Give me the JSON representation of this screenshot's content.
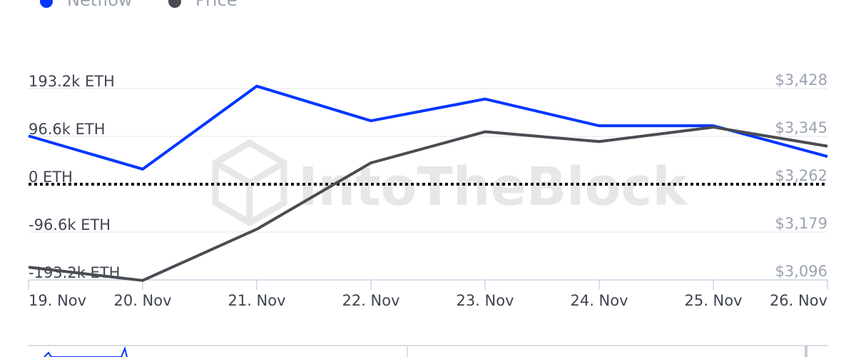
{
  "watermark": "IntoTheBlock",
  "legend": [
    {
      "name": "Netflow",
      "color": "#0336ff"
    },
    {
      "name": "Price",
      "color": "#4a4c52"
    }
  ],
  "chart_data": {
    "type": "line",
    "categories": [
      "19. Nov",
      "20. Nov",
      "21. Nov",
      "22. Nov",
      "23. Nov",
      "24. Nov",
      "25. Nov",
      "26. Nov"
    ],
    "series": [
      {
        "name": "Netflow",
        "axis": "left",
        "color": "#0336ff",
        "values": [
          97500,
          30500,
          198000,
          128000,
          172000,
          118000,
          118000,
          56000
        ]
      },
      {
        "name": "Price",
        "axis": "right",
        "color": "#4a4c52",
        "values": [
          3118,
          3095,
          3184,
          3299,
          3353,
          3336,
          3361,
          3328
        ]
      }
    ],
    "left_axis": {
      "ticks": [
        193200,
        96600,
        0,
        -96600,
        -193200
      ],
      "tick_labels": [
        "193.2k ETH",
        "96.6k ETH",
        "0 ETH",
        "-96.6k ETH",
        "-193.2k ETH"
      ],
      "ylim": [
        -193200,
        193200
      ]
    },
    "right_axis": {
      "ticks": [
        3428,
        3345,
        3262,
        3179,
        3096
      ],
      "tick_labels": [
        "$3,428",
        "$3,345",
        "$3,262",
        "$3,179",
        "$3,096"
      ],
      "ylim": [
        3096,
        3428
      ]
    },
    "zero_line": "dotted",
    "grid": true,
    "legend_position": "top-left"
  }
}
